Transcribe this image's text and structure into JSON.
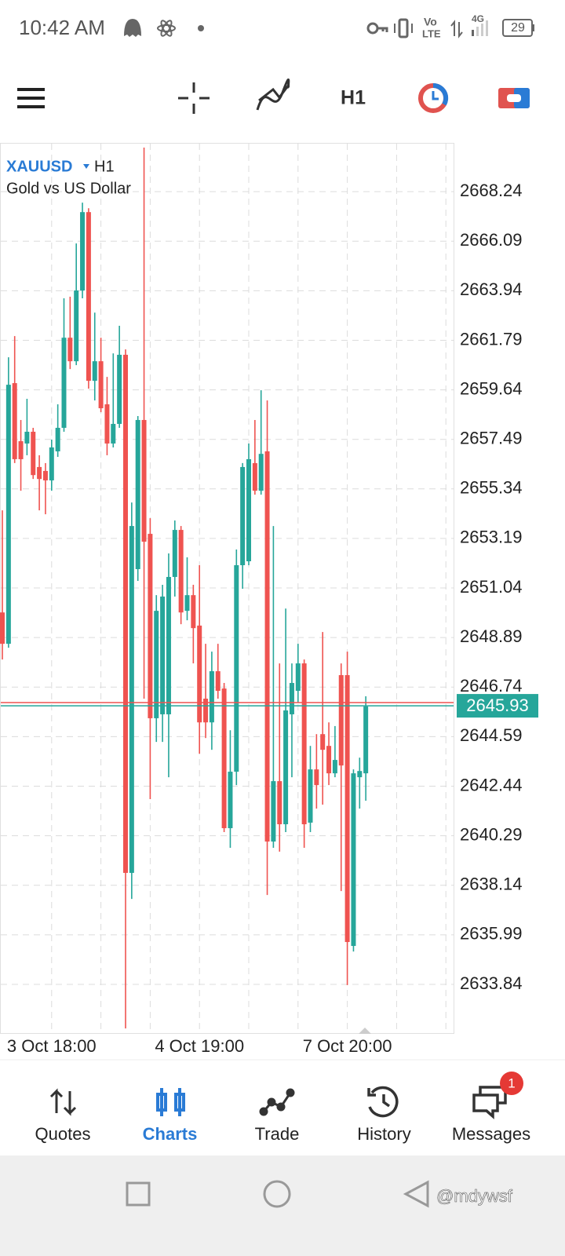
{
  "status_bar": {
    "time": "10:42 AM",
    "network": "4G",
    "battery": 29
  },
  "toolbar": {
    "timeframe": "H1"
  },
  "chart_data": {
    "type": "candlestick",
    "symbol": "XAUUSD",
    "timeframe": "H1",
    "description": "Gold vs US Dollar",
    "categories": [
      null,
      null,
      null,
      null,
      null,
      null,
      null,
      null,
      "3 Oct 18:00",
      null,
      null,
      null,
      null,
      null,
      null,
      null,
      null,
      null,
      null,
      null,
      null,
      null,
      null,
      null,
      null,
      null,
      null,
      null,
      null,
      null,
      null,
      null,
      "4 Oct 19:00",
      null,
      null,
      null,
      null,
      null,
      null,
      null,
      null,
      null,
      null,
      null,
      null,
      null,
      null,
      null,
      null,
      null,
      null,
      null,
      null,
      null,
      null,
      null,
      "7 Oct 20:00",
      null,
      null,
      null
    ],
    "open": [
      2649.98,
      2648.62,
      2659.93,
      2657.41,
      2657.31,
      2657.82,
      2656.29,
      2656.12,
      2655.71,
      2656.97,
      2657.99,
      2661.9,
      2660.88,
      2663.95,
      2667.35,
      2660.03,
      2660.88,
      2659.01,
      2657.31,
      2658.16,
      2661.16,
      2638.68,
      2651.86,
      2658.33,
      2653.39,
      2645.39,
      2645.56,
      2645.56,
      2651.52,
      2653.56,
      2650.05,
      2650.73,
      2649.41,
      2646.24,
      2645.21,
      2647.43,
      2646.68,
      2640.62,
      2643.07,
      2652.03,
      2652.2,
      2656.46,
      2655.26,
      2656.97,
      2640.04,
      2642.66,
      2640.79,
      2645.56,
      2646.58,
      2647.77,
      2640.86,
      2643.17,
      2644.7,
      2644.19,
      2643.0,
      2647.26,
      2647.26,
      2635.51,
      2642.83,
      2643.0
    ],
    "high": [
      2654.41,
      2661.05,
      2661.97,
      2658.33,
      2659.25,
      2657.99,
      2656.8,
      2656.46,
      2657.48,
      2659.01,
      2663.61,
      2663.68,
      2665.99,
      2667.76,
      2667.52,
      2662.99,
      2661.9,
      2660.2,
      2661.22,
      2662.42,
      2661.39,
      2654.75,
      2658.5,
      2670.15,
      2654.07,
      2650.73,
      2651.18,
      2652.54,
      2653.97,
      2653.73,
      2652.37,
      2651.18,
      2652.03,
      2648.62,
      2648.28,
      2648.62,
      2646.92,
      2644.87,
      2652.71,
      2656.46,
      2657.31,
      2658.33,
      2659.62,
      2659.18,
      2653.73,
      2647.77,
      2650.15,
      2647.77,
      2648.62,
      2647.94,
      2644.19,
      2644.7,
      2649.13,
      2645.21,
      2645.05,
      2647.77,
      2648.28,
      2643.17,
      2643.68,
      2646.34
    ],
    "low": [
      2647.94,
      2648.45,
      2656.46,
      2655.26,
      2656.8,
      2655.77,
      2654.41,
      2654.24,
      2655.26,
      2656.73,
      2657.82,
      2660.54,
      2660.71,
      2663.61,
      2659.69,
      2659.18,
      2658.67,
      2656.8,
      2657.14,
      2657.99,
      2631.93,
      2637.55,
      2651.35,
      2646.24,
      2641.88,
      2644.36,
      2644.36,
      2642.83,
      2650.67,
      2649.47,
      2649.64,
      2647.77,
      2643.85,
      2644.53,
      2644.02,
      2646.24,
      2640.45,
      2639.77,
      2642.49,
      2651.01,
      2652.03,
      2655.09,
      2655.09,
      2637.72,
      2639.77,
      2639.6,
      2640.45,
      2642.83,
      2646.07,
      2639.77,
      2640.45,
      2641.47,
      2641.64,
      2642.49,
      2642.83,
      2637.89,
      2633.81,
      2635.27,
      2641.47,
      2641.81
    ],
    "close": [
      2648.62,
      2659.86,
      2656.63,
      2656.63,
      2657.82,
      2655.94,
      2655.77,
      2655.71,
      2657.14,
      2657.99,
      2661.9,
      2660.88,
      2663.95,
      2667.35,
      2660.03,
      2660.88,
      2658.84,
      2657.31,
      2658.16,
      2661.16,
      2638.68,
      2653.73,
      2658.33,
      2653.05,
      2645.39,
      2650.05,
      2650.67,
      2651.52,
      2653.56,
      2649.98,
      2650.73,
      2649.3,
      2645.21,
      2645.21,
      2647.43,
      2646.58,
      2640.62,
      2643.07,
      2652.03,
      2656.29,
      2656.63,
      2655.26,
      2656.86,
      2640.04,
      2642.66,
      2640.79,
      2645.73,
      2646.92,
      2647.77,
      2640.79,
      2643.17,
      2642.49,
      2644.02,
      2643.0,
      2643.58,
      2643.34,
      2635.68,
      2643.0,
      2643.1,
      2645.9
    ],
    "up_color": "#26a69a",
    "down_color": "#ef5350",
    "ylim": [
      2631.73,
      2670.32
    ],
    "yticks": [
      2633.84,
      2635.99,
      2638.14,
      2640.29,
      2642.44,
      2644.59,
      2646.74,
      2648.89,
      2651.04,
      2653.19,
      2655.34,
      2657.49,
      2659.64,
      2661.79,
      2663.94,
      2666.09,
      2668.24
    ],
    "grid": true,
    "bid": 2645.93,
    "bid_color": "#26a69a",
    "ask": 2646.07,
    "ask_color": "#ef5350"
  },
  "nav": {
    "items": [
      "Quotes",
      "Charts",
      "Trade",
      "History",
      "Messages"
    ],
    "active": 1,
    "active_color": "#2a7bd5",
    "badge": 1
  },
  "watermark": "@mdywsf"
}
